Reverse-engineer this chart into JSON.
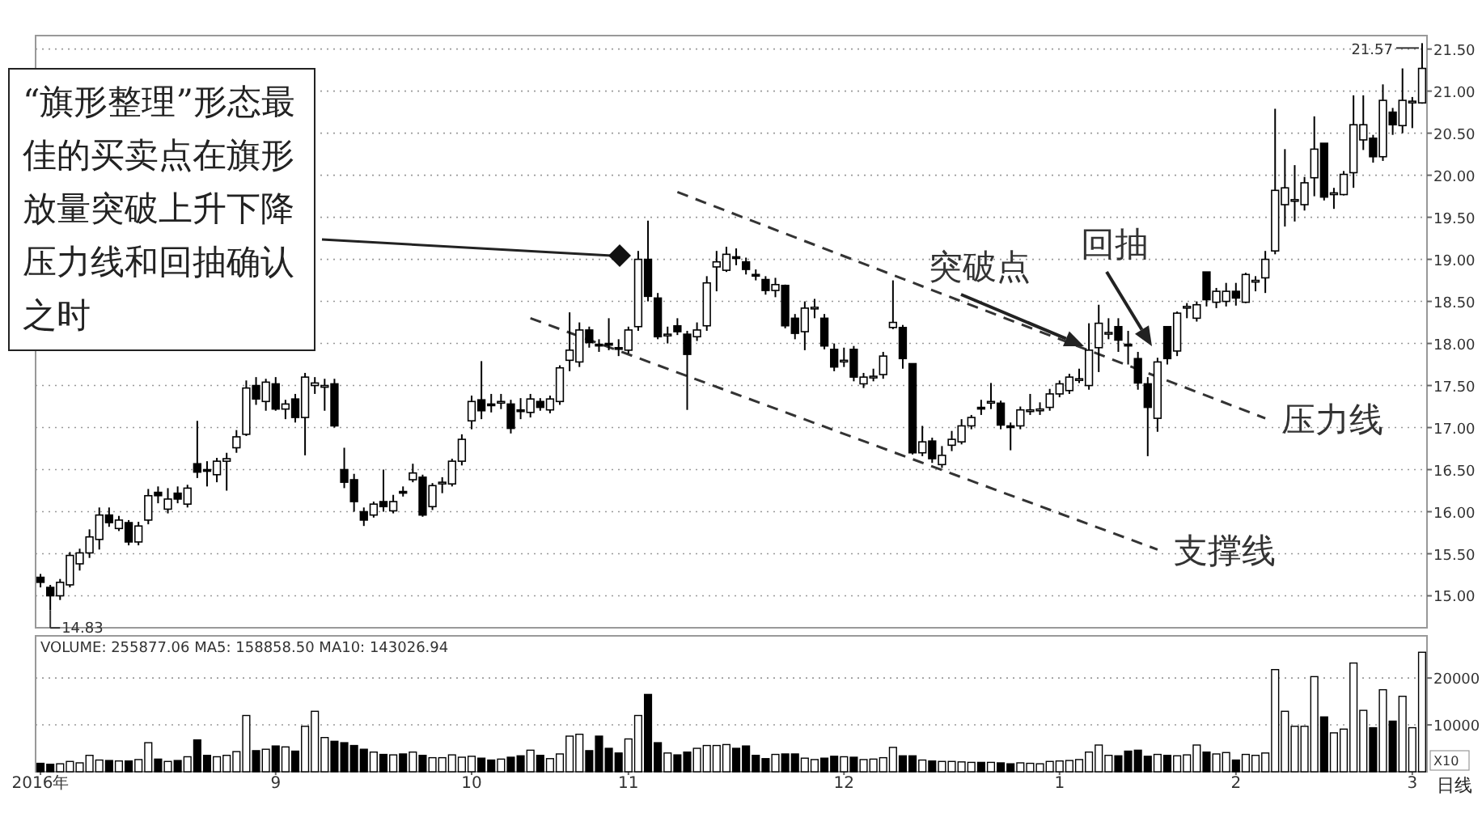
{
  "chart_data": [
    {
      "type": "candlestick",
      "categories": [
        null,
        null,
        null,
        null,
        null,
        null,
        null,
        null,
        null,
        null,
        null,
        null,
        null,
        null,
        null,
        null,
        null,
        null,
        null,
        null,
        null,
        null,
        null,
        null,
        null,
        null,
        null,
        null,
        null,
        null,
        null,
        null,
        null,
        null,
        null,
        null,
        null,
        null,
        null,
        null,
        null,
        null,
        null,
        null,
        null,
        null,
        null,
        null,
        null,
        null,
        null,
        null,
        null,
        null,
        null,
        null,
        null,
        null,
        null,
        null,
        null,
        null,
        null,
        null,
        null,
        null,
        null,
        null,
        null,
        null,
        null,
        null,
        null,
        null,
        null,
        null,
        null,
        null,
        null,
        null,
        null,
        null,
        null,
        null,
        null,
        null,
        null,
        null,
        null,
        null,
        null,
        null,
        null,
        null,
        null,
        null,
        null,
        null,
        null,
        null,
        null,
        null,
        null,
        null,
        null,
        null,
        null,
        null,
        null,
        null,
        null,
        null,
        null,
        null,
        null,
        null,
        null,
        null,
        null,
        null,
        null,
        null,
        null,
        null,
        null,
        null,
        null,
        null,
        null,
        null,
        null,
        null,
        null,
        null,
        null,
        null,
        null,
        null,
        null,
        null,
        null,
        null
      ],
      "ohlc": [
        [
          15.22,
          15.26,
          15.1,
          15.16
        ],
        [
          15.1,
          15.13,
          14.83,
          15.0
        ],
        [
          15.0,
          15.2,
          14.95,
          15.16
        ],
        [
          15.13,
          15.52,
          15.1,
          15.48
        ],
        [
          15.38,
          15.56,
          15.3,
          15.51
        ],
        [
          15.51,
          15.79,
          15.45,
          15.7
        ],
        [
          15.67,
          16.05,
          15.55,
          15.96
        ],
        [
          15.96,
          16.05,
          15.82,
          15.87
        ],
        [
          15.8,
          15.95,
          15.77,
          15.9
        ],
        [
          15.87,
          15.9,
          15.6,
          15.64
        ],
        [
          15.64,
          15.88,
          15.6,
          15.83
        ],
        [
          15.9,
          16.27,
          15.85,
          16.19
        ],
        [
          16.23,
          16.3,
          16.1,
          16.19
        ],
        [
          16.03,
          16.28,
          15.98,
          16.15
        ],
        [
          16.22,
          16.3,
          16.1,
          16.15
        ],
        [
          16.09,
          16.32,
          16.05,
          16.28
        ],
        [
          16.57,
          17.08,
          16.4,
          16.47
        ],
        [
          16.5,
          16.6,
          16.3,
          16.49
        ],
        [
          16.44,
          16.64,
          16.35,
          16.6
        ],
        [
          16.6,
          16.7,
          16.25,
          16.63
        ],
        [
          16.76,
          16.97,
          16.7,
          16.89
        ],
        [
          16.92,
          17.56,
          16.9,
          17.47
        ],
        [
          17.5,
          17.6,
          17.27,
          17.34
        ],
        [
          17.31,
          17.58,
          17.2,
          17.54
        ],
        [
          17.52,
          17.6,
          17.2,
          17.22
        ],
        [
          17.22,
          17.33,
          17.1,
          17.28
        ],
        [
          17.34,
          17.4,
          17.06,
          17.12
        ],
        [
          17.12,
          17.65,
          16.67,
          17.6
        ],
        [
          17.5,
          17.6,
          17.4,
          17.53
        ],
        [
          17.48,
          17.58,
          17.2,
          17.5
        ],
        [
          17.52,
          17.58,
          17.0,
          17.02
        ],
        [
          16.5,
          16.76,
          16.28,
          16.35
        ],
        [
          16.38,
          16.45,
          16.0,
          16.12
        ],
        [
          16.0,
          16.05,
          15.83,
          15.9
        ],
        [
          15.96,
          16.12,
          15.93,
          16.09
        ],
        [
          16.12,
          16.5,
          16.0,
          16.06
        ],
        [
          16.01,
          16.2,
          15.98,
          16.12
        ],
        [
          16.24,
          16.3,
          16.18,
          16.23
        ],
        [
          16.38,
          16.57,
          16.35,
          16.46
        ],
        [
          16.41,
          16.44,
          15.94,
          15.96
        ],
        [
          16.06,
          16.34,
          16.02,
          16.31
        ],
        [
          16.34,
          16.41,
          16.22,
          16.35
        ],
        [
          16.33,
          16.63,
          16.3,
          16.6
        ],
        [
          16.6,
          16.92,
          16.55,
          16.86
        ],
        [
          17.08,
          17.38,
          16.98,
          17.31
        ],
        [
          17.33,
          17.79,
          17.1,
          17.2
        ],
        [
          17.28,
          17.4,
          17.18,
          17.27
        ],
        [
          17.3,
          17.4,
          17.22,
          17.31
        ],
        [
          17.28,
          17.33,
          16.93,
          16.99
        ],
        [
          17.21,
          17.35,
          17.1,
          17.2
        ],
        [
          17.18,
          17.4,
          17.12,
          17.34
        ],
        [
          17.31,
          17.35,
          17.2,
          17.24
        ],
        [
          17.21,
          17.38,
          17.17,
          17.34
        ],
        [
          17.31,
          17.74,
          17.27,
          17.71
        ],
        [
          17.8,
          18.37,
          17.67,
          17.92
        ],
        [
          17.78,
          18.25,
          17.72,
          18.16
        ],
        [
          18.16,
          18.2,
          17.95,
          18.01
        ],
        [
          17.99,
          18.05,
          17.9,
          17.98
        ],
        [
          18.0,
          18.3,
          17.92,
          17.98
        ],
        [
          17.95,
          18.05,
          17.85,
          17.94
        ],
        [
          17.92,
          18.2,
          17.88,
          18.16
        ],
        [
          18.2,
          19.1,
          18.15,
          19.0
        ],
        [
          19.0,
          19.46,
          18.5,
          18.56
        ],
        [
          18.54,
          18.6,
          18.05,
          18.08
        ],
        [
          18.1,
          18.2,
          18.0,
          18.11
        ],
        [
          18.21,
          18.3,
          18.1,
          18.14
        ],
        [
          18.11,
          18.15,
          17.21,
          17.87
        ],
        [
          18.08,
          18.25,
          18.03,
          18.16
        ],
        [
          18.21,
          18.8,
          18.15,
          18.72
        ],
        [
          18.91,
          19.1,
          18.62,
          18.97
        ],
        [
          18.87,
          19.15,
          18.85,
          19.06
        ],
        [
          19.03,
          19.13,
          18.93,
          19.02
        ],
        [
          18.97,
          19.02,
          18.82,
          18.88
        ],
        [
          18.82,
          18.88,
          18.75,
          18.81
        ],
        [
          18.76,
          18.8,
          18.58,
          18.63
        ],
        [
          18.63,
          18.78,
          18.55,
          18.7
        ],
        [
          18.69,
          18.7,
          18.18,
          18.21
        ],
        [
          18.3,
          18.35,
          18.05,
          18.12
        ],
        [
          18.14,
          18.5,
          17.92,
          18.42
        ],
        [
          18.42,
          18.53,
          18.3,
          18.43
        ],
        [
          18.3,
          18.35,
          17.93,
          17.97
        ],
        [
          17.93,
          18.0,
          17.67,
          17.72
        ],
        [
          17.79,
          17.95,
          17.72,
          17.8
        ],
        [
          17.93,
          17.97,
          17.55,
          17.6
        ],
        [
          17.52,
          17.65,
          17.47,
          17.6
        ],
        [
          17.6,
          17.7,
          17.55,
          17.61
        ],
        [
          17.63,
          17.9,
          17.58,
          17.85
        ],
        [
          18.19,
          18.75,
          18.17,
          18.25
        ],
        [
          18.19,
          18.22,
          17.7,
          17.82
        ],
        [
          17.76,
          17.76,
          16.68,
          16.7
        ],
        [
          16.7,
          17.02,
          16.66,
          16.83
        ],
        [
          16.84,
          16.88,
          16.58,
          16.63
        ],
        [
          16.56,
          16.78,
          16.52,
          16.67
        ],
        [
          16.79,
          16.96,
          16.72,
          16.86
        ],
        [
          16.83,
          17.1,
          16.8,
          17.02
        ],
        [
          17.02,
          17.15,
          16.98,
          17.12
        ],
        [
          17.24,
          17.33,
          17.15,
          17.23
        ],
        [
          17.3,
          17.53,
          17.22,
          17.31
        ],
        [
          17.29,
          17.32,
          16.98,
          17.03
        ],
        [
          17.02,
          17.06,
          16.73,
          17.01
        ],
        [
          17.02,
          17.25,
          16.98,
          17.21
        ],
        [
          17.2,
          17.4,
          17.15,
          17.21
        ],
        [
          17.2,
          17.3,
          17.15,
          17.22
        ],
        [
          17.24,
          17.46,
          17.2,
          17.4
        ],
        [
          17.4,
          17.56,
          17.36,
          17.52
        ],
        [
          17.44,
          17.64,
          17.4,
          17.6
        ],
        [
          17.57,
          17.7,
          17.53,
          17.58
        ],
        [
          17.5,
          18.24,
          17.45,
          17.92
        ],
        [
          17.95,
          18.46,
          17.66,
          18.24
        ],
        [
          18.12,
          18.3,
          18.05,
          18.13
        ],
        [
          18.2,
          18.3,
          17.9,
          18.04
        ],
        [
          17.99,
          18.15,
          17.75,
          17.98
        ],
        [
          17.82,
          17.9,
          17.45,
          17.53
        ],
        [
          17.52,
          17.6,
          16.66,
          17.24
        ],
        [
          17.11,
          17.83,
          16.95,
          17.78
        ],
        [
          18.2,
          18.2,
          17.75,
          17.82
        ],
        [
          17.91,
          18.38,
          17.85,
          18.36
        ],
        [
          18.43,
          18.48,
          18.3,
          18.44
        ],
        [
          18.3,
          18.5,
          18.26,
          18.46
        ],
        [
          18.85,
          18.85,
          18.44,
          18.52
        ],
        [
          18.49,
          18.66,
          18.42,
          18.62
        ],
        [
          18.5,
          18.72,
          18.44,
          18.62
        ],
        [
          18.62,
          18.72,
          18.45,
          18.54
        ],
        [
          18.49,
          18.84,
          18.48,
          18.82
        ],
        [
          18.73,
          18.8,
          18.62,
          18.75
        ],
        [
          18.78,
          19.1,
          18.6,
          19.0
        ],
        [
          19.1,
          20.79,
          19.06,
          19.82
        ],
        [
          19.65,
          20.31,
          19.39,
          19.85
        ],
        [
          19.7,
          20.12,
          19.45,
          19.71
        ],
        [
          19.65,
          19.98,
          19.58,
          19.91
        ],
        [
          19.97,
          20.7,
          19.75,
          20.31
        ],
        [
          20.38,
          20.38,
          19.7,
          19.74
        ],
        [
          19.77,
          19.85,
          19.6,
          19.79
        ],
        [
          19.77,
          20.05,
          19.76,
          20.01
        ],
        [
          20.03,
          20.95,
          19.85,
          20.6
        ],
        [
          20.42,
          20.95,
          20.3,
          20.6
        ],
        [
          20.44,
          20.48,
          20.15,
          20.22
        ],
        [
          20.22,
          21.08,
          20.17,
          20.89
        ],
        [
          20.75,
          20.8,
          20.48,
          20.6
        ],
        [
          20.59,
          21.27,
          20.5,
          20.89
        ],
        [
          20.87,
          20.93,
          20.56,
          20.88
        ],
        [
          20.86,
          21.57,
          20.85,
          21.27
        ]
      ],
      "series": [
        {
          "name": "压力线",
          "type": "line",
          "line_style": "dashed",
          "color": "#333333",
          "values": [
            null,
            null,
            null,
            null,
            null,
            null,
            null,
            null,
            null,
            null,
            null,
            null,
            null,
            null,
            null,
            null,
            null,
            null,
            null,
            null,
            null,
            null,
            null,
            null,
            null,
            null,
            null,
            null,
            null,
            null,
            null,
            null,
            null,
            null,
            null,
            null,
            null,
            null,
            null,
            null,
            null,
            null,
            null,
            null,
            null,
            null,
            null,
            null,
            null,
            null,
            null,
            null,
            null,
            null,
            null,
            null,
            null,
            null,
            null,
            null,
            null,
            null,
            null,
            null,
            null,
            19.8,
            null,
            null,
            null,
            null,
            null,
            null,
            null,
            null,
            null,
            null,
            null,
            null,
            null,
            null,
            null,
            null,
            null,
            null,
            null,
            null,
            null,
            null,
            null,
            null,
            null,
            null,
            null,
            null,
            null,
            null,
            null,
            null,
            null,
            null,
            null,
            null,
            null,
            null,
            null,
            null,
            null,
            null,
            null,
            null,
            null,
            null,
            null,
            null,
            null,
            null,
            null,
            null,
            null,
            null,
            null,
            null,
            null,
            null,
            null,
            17.11,
            null,
            null,
            null,
            null,
            null,
            null,
            null,
            null,
            null,
            null,
            null,
            null,
            null,
            null,
            null,
            null
          ]
        },
        {
          "name": "支撑线",
          "type": "line",
          "line_style": "dashed",
          "color": "#333333",
          "values": [
            null,
            null,
            null,
            null,
            null,
            null,
            null,
            null,
            null,
            null,
            null,
            null,
            null,
            null,
            null,
            null,
            null,
            null,
            null,
            null,
            null,
            null,
            null,
            null,
            null,
            null,
            null,
            null,
            null,
            null,
            null,
            null,
            null,
            null,
            null,
            null,
            null,
            null,
            null,
            null,
            null,
            null,
            null,
            null,
            null,
            null,
            null,
            null,
            null,
            null,
            18.3,
            null,
            null,
            null,
            null,
            null,
            null,
            null,
            null,
            null,
            null,
            null,
            null,
            null,
            null,
            null,
            null,
            null,
            null,
            null,
            null,
            null,
            null,
            null,
            null,
            null,
            null,
            null,
            null,
            null,
            null,
            null,
            null,
            null,
            null,
            null,
            null,
            null,
            null,
            null,
            null,
            null,
            null,
            null,
            null,
            null,
            null,
            null,
            null,
            null,
            null,
            null,
            null,
            null,
            null,
            null,
            null,
            null,
            null,
            null,
            null,
            null,
            null,
            null,
            15.55,
            null,
            null,
            null,
            null,
            null,
            null,
            null,
            null,
            null,
            null,
            null,
            null,
            null,
            null,
            null,
            null,
            null,
            null,
            null,
            null,
            null,
            null,
            null,
            null,
            null,
            null,
            null
          ]
        }
      ],
      "ylim": [
        14.62,
        21.66
      ],
      "yticks": [
        {
          "value": 15,
          "label": "15.00"
        },
        {
          "value": 15.5,
          "label": "15.50"
        },
        {
          "value": 16,
          "label": "16.00"
        },
        {
          "value": 16.5,
          "label": "16.50"
        },
        {
          "value": 17,
          "label": "17.00"
        },
        {
          "value": 17.5,
          "label": "17.50"
        },
        {
          "value": 18,
          "label": "18.00"
        },
        {
          "value": 18.5,
          "label": "18.50"
        },
        {
          "value": 19,
          "label": "19.00"
        },
        {
          "value": 19.5,
          "label": "19.50"
        },
        {
          "value": 20,
          "label": "20.00"
        },
        {
          "value": 20.5,
          "label": "20.50"
        },
        {
          "value": 21,
          "label": "21.00"
        },
        {
          "value": 21.5,
          "label": "21.50"
        }
      ],
      "grid": "y",
      "tick_labels": "y",
      "annotations": [
        "“旗形整理”形态最佳的买卖点在旗形放量突破上升下降压力线和回抽确认之时",
        "突破点",
        "回抽",
        "14.83",
        "21.57"
      ]
    },
    {
      "type": "bar",
      "title": "VOLUME: 255877.06 MA5: 158858.50 MA10: 143026.94",
      "ylabel": "X10",
      "categories": [
        "2016年",
        null,
        null,
        null,
        null,
        null,
        null,
        null,
        null,
        null,
        null,
        null,
        null,
        null,
        null,
        null,
        null,
        null,
        null,
        null,
        null,
        null,
        null,
        null,
        "9",
        null,
        null,
        null,
        null,
        null,
        null,
        null,
        null,
        null,
        null,
        null,
        null,
        null,
        null,
        null,
        null,
        null,
        null,
        null,
        "10",
        null,
        null,
        null,
        null,
        null,
        null,
        null,
        null,
        null,
        null,
        null,
        null,
        null,
        null,
        null,
        "11",
        null,
        null,
        null,
        null,
        null,
        null,
        null,
        null,
        null,
        null,
        null,
        null,
        null,
        null,
        null,
        null,
        null,
        null,
        null,
        null,
        null,
        "12",
        null,
        null,
        null,
        null,
        null,
        null,
        null,
        null,
        null,
        null,
        null,
        null,
        null,
        null,
        null,
        null,
        null,
        null,
        null,
        null,
        null,
        "1",
        null,
        null,
        null,
        null,
        null,
        null,
        null,
        null,
        null,
        null,
        null,
        null,
        null,
        null,
        null,
        null,
        null,
        "2",
        null,
        null,
        null,
        null,
        null,
        null,
        null,
        null,
        null,
        null,
        null,
        null,
        null,
        null,
        null,
        null,
        null,
        "3",
        null
      ],
      "values": [
        1800,
        1600,
        1700,
        2200,
        1900,
        3500,
        2500,
        2400,
        2300,
        2300,
        2600,
        6200,
        2700,
        2200,
        2400,
        3200,
        6800,
        3500,
        3200,
        3500,
        4300,
        12000,
        4500,
        4800,
        5500,
        5300,
        4400,
        9700,
        12900,
        7300,
        6500,
        6200,
        5600,
        4800,
        4200,
        3700,
        3600,
        3800,
        4200,
        3500,
        3000,
        3000,
        3600,
        3100,
        3300,
        2900,
        2500,
        2700,
        3100,
        3400,
        4600,
        3500,
        2800,
        3800,
        7600,
        8000,
        4500,
        7600,
        5000,
        4000,
        7000,
        12000,
        16500,
        6200,
        4000,
        3600,
        4200,
        5000,
        5600,
        5600,
        5800,
        5000,
        5500,
        3500,
        2800,
        3700,
        3800,
        3800,
        2900,
        2600,
        2900,
        3300,
        3200,
        3100,
        2600,
        2700,
        3000,
        5200,
        3400,
        3400,
        2500,
        2300,
        2200,
        2200,
        2100,
        2000,
        2000,
        2000,
        1900,
        1700,
        1900,
        1800,
        1700,
        2200,
        2300,
        2400,
        2600,
        4200,
        5700,
        3500,
        3400,
        4400,
        4600,
        3300,
        3700,
        3500,
        3400,
        3600,
        5700,
        4200,
        3800,
        4100,
        2500,
        3700,
        3500,
        4000,
        21800,
        12900,
        9700,
        9700,
        20300,
        11700,
        8300,
        9100,
        23200,
        13100,
        9400,
        17500,
        10800,
        16100,
        9400,
        25500
      ],
      "colors": [
        "#000000",
        "#000000",
        "#ffffff",
        "#ffffff",
        "#ffffff",
        "#ffffff",
        "#ffffff",
        "#000000",
        "#ffffff",
        "#000000",
        "#ffffff",
        "#ffffff",
        "#000000",
        "#ffffff",
        "#000000",
        "#ffffff",
        "#000000",
        "#000000",
        "#ffffff",
        "#ffffff",
        "#ffffff",
        "#ffffff",
        "#000000",
        "#ffffff",
        "#000000",
        "#ffffff",
        "#000000",
        "#ffffff",
        "#ffffff",
        "#ffffff",
        "#000000",
        "#000000",
        "#000000",
        "#000000",
        "#ffffff",
        "#000000",
        "#ffffff",
        "#000000",
        "#ffffff",
        "#000000",
        "#ffffff",
        "#ffffff",
        "#ffffff",
        "#ffffff",
        "#ffffff",
        "#000000",
        "#000000",
        "#ffffff",
        "#000000",
        "#000000",
        "#ffffff",
        "#000000",
        "#ffffff",
        "#ffffff",
        "#ffffff",
        "#ffffff",
        "#000000",
        "#000000",
        "#000000",
        "#000000",
        "#ffffff",
        "#ffffff",
        "#000000",
        "#000000",
        "#ffffff",
        "#000000",
        "#000000",
        "#ffffff",
        "#ffffff",
        "#ffffff",
        "#ffffff",
        "#000000",
        "#000000",
        "#000000",
        "#000000",
        "#ffffff",
        "#000000",
        "#000000",
        "#ffffff",
        "#ffffff",
        "#000000",
        "#000000",
        "#ffffff",
        "#000000",
        "#ffffff",
        "#ffffff",
        "#ffffff",
        "#ffffff",
        "#000000",
        "#000000",
        "#ffffff",
        "#000000",
        "#ffffff",
        "#ffffff",
        "#ffffff",
        "#ffffff",
        "#000000",
        "#ffffff",
        "#000000",
        "#000000",
        "#ffffff",
        "#ffffff",
        "#ffffff",
        "#ffffff",
        "#ffffff",
        "#ffffff",
        "#ffffff",
        "#ffffff",
        "#ffffff",
        "#ffffff",
        "#000000",
        "#000000",
        "#000000",
        "#000000",
        "#ffffff",
        "#000000",
        "#ffffff",
        "#ffffff",
        "#ffffff",
        "#000000",
        "#ffffff",
        "#ffffff",
        "#000000",
        "#ffffff",
        "#ffffff",
        "#ffffff",
        "#ffffff",
        "#ffffff",
        "#ffffff",
        "#ffffff",
        "#ffffff",
        "#000000",
        "#ffffff",
        "#ffffff",
        "#ffffff",
        "#ffffff",
        "#000000",
        "#ffffff",
        "#000000",
        "#ffffff",
        "#ffffff",
        "#ffffff"
      ],
      "ylim": [
        0,
        29000
      ],
      "yticks": [
        10000,
        20000
      ],
      "grid": "y",
      "annotations": [
        "日线"
      ]
    }
  ]
}
